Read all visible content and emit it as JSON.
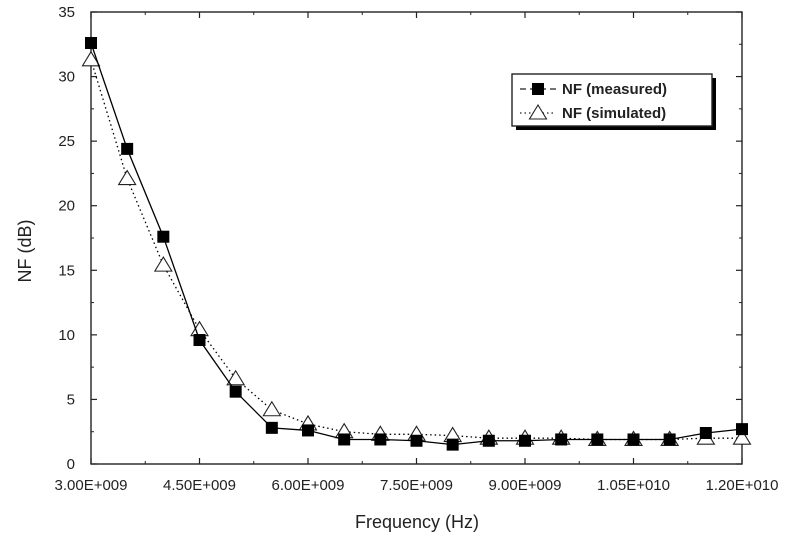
{
  "chart_data": {
    "type": "line",
    "xlabel": "Frequency (Hz)",
    "ylabel": "NF (dB)",
    "xlim": [
      3000000000,
      12000000000
    ],
    "ylim": [
      0,
      35
    ],
    "x_ticks": [
      3000000000,
      4500000000,
      6000000000,
      7500000000,
      9000000000,
      10500000000,
      12000000000
    ],
    "x_tick_labels": [
      "3.00E+009",
      "4.50E+009",
      "6.00E+009",
      "7.50E+009",
      "9.00E+009",
      "1.05E+010",
      "1.20E+010"
    ],
    "y_ticks": [
      0,
      5,
      10,
      15,
      20,
      25,
      30,
      35
    ],
    "y_tick_labels": [
      "0",
      "5",
      "10",
      "15",
      "20",
      "25",
      "30",
      "35"
    ],
    "grid": false,
    "legend_position": "top-right",
    "x": [
      3000000000,
      3500000000,
      4000000000,
      4500000000,
      5000000000,
      5500000000,
      6000000000,
      6500000000,
      7000000000,
      7500000000,
      8000000000,
      8500000000,
      9000000000,
      9500000000,
      10000000000,
      10500000000,
      11000000000,
      11500000000,
      12000000000
    ],
    "series": [
      {
        "name": "NF (measured)",
        "marker": "filled-square",
        "line_style": "solid",
        "color": "#000000",
        "values": [
          32.6,
          24.4,
          17.6,
          9.6,
          5.6,
          2.8,
          2.6,
          1.9,
          1.9,
          1.8,
          1.5,
          1.8,
          1.8,
          1.9,
          1.9,
          1.9,
          1.9,
          2.4,
          2.7
        ]
      },
      {
        "name": "NF (simulated)",
        "marker": "open-triangle",
        "line_style": "dotted",
        "color": "#000000",
        "values": [
          31.3,
          22.1,
          15.4,
          10.4,
          6.6,
          4.2,
          3.1,
          2.5,
          2.3,
          2.3,
          2.2,
          2.0,
          2.0,
          2.0,
          1.9,
          1.9,
          1.9,
          2.0,
          2.0
        ]
      }
    ]
  }
}
